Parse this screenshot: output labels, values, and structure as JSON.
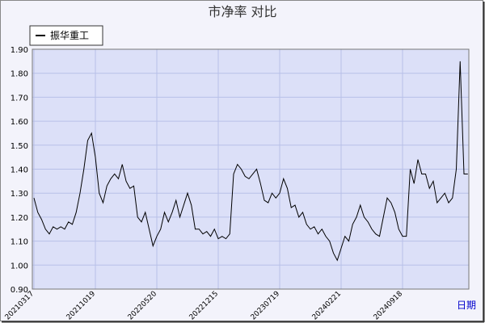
{
  "chart_data": {
    "type": "line",
    "title": "市净率 对比",
    "x_label": "日期",
    "categories": [
      "20210317",
      null,
      null,
      null,
      null,
      null,
      null,
      null,
      null,
      null,
      null,
      null,
      null,
      null,
      null,
      null,
      "20211019",
      null,
      null,
      null,
      null,
      null,
      null,
      null,
      null,
      null,
      null,
      null,
      null,
      null,
      null,
      null,
      "20220520",
      null,
      null,
      null,
      null,
      null,
      null,
      null,
      null,
      null,
      null,
      null,
      null,
      null,
      null,
      null,
      "20221215",
      null,
      null,
      null,
      null,
      null,
      null,
      null,
      null,
      null,
      null,
      null,
      null,
      null,
      null,
      null,
      "20230719",
      null,
      null,
      null,
      null,
      null,
      null,
      null,
      null,
      null,
      null,
      null,
      null,
      null,
      null,
      null,
      "20240221",
      null,
      null,
      null,
      null,
      null,
      null,
      null,
      null,
      null,
      null,
      null,
      null,
      null,
      null,
      null,
      "20240918",
      null,
      null,
      null,
      null,
      null,
      null,
      null,
      null,
      null,
      null,
      null,
      null,
      null,
      null,
      null,
      null,
      null
    ],
    "series": [
      {
        "name": "振华重工",
        "color": "#000000",
        "values": [
          1.28,
          1.22,
          1.19,
          1.15,
          1.13,
          1.16,
          1.15,
          1.16,
          1.15,
          1.18,
          1.17,
          1.22,
          1.3,
          1.4,
          1.52,
          1.55,
          1.45,
          1.3,
          1.26,
          1.33,
          1.36,
          1.38,
          1.36,
          1.42,
          1.35,
          1.32,
          1.33,
          1.2,
          1.18,
          1.22,
          1.15,
          1.08,
          1.12,
          1.15,
          1.22,
          1.18,
          1.22,
          1.27,
          1.2,
          1.25,
          1.3,
          1.25,
          1.15,
          1.15,
          1.13,
          1.14,
          1.12,
          1.15,
          1.11,
          1.12,
          1.11,
          1.13,
          1.38,
          1.42,
          1.4,
          1.37,
          1.36,
          1.38,
          1.4,
          1.34,
          1.27,
          1.26,
          1.3,
          1.28,
          1.3,
          1.36,
          1.32,
          1.24,
          1.25,
          1.2,
          1.22,
          1.17,
          1.15,
          1.16,
          1.13,
          1.15,
          1.12,
          1.1,
          1.05,
          1.02,
          1.07,
          1.12,
          1.1,
          1.17,
          1.2,
          1.25,
          1.2,
          1.18,
          1.15,
          1.13,
          1.12,
          1.2,
          1.28,
          1.26,
          1.22,
          1.15,
          1.12,
          1.12,
          1.4,
          1.34,
          1.44,
          1.38,
          1.38,
          1.32,
          1.35,
          1.26,
          1.28,
          1.3,
          1.26,
          1.28,
          1.4,
          1.85,
          1.38,
          1.38
        ]
      }
    ],
    "ylim": [
      0.9,
      1.9
    ],
    "yticks": [
      {
        "value": 0.9,
        "label": "0.90"
      },
      {
        "value": 1.0,
        "label": "1.00"
      },
      {
        "value": 1.1,
        "label": "1.10"
      },
      {
        "value": 1.2,
        "label": "1.20"
      },
      {
        "value": 1.3,
        "label": "1.30"
      },
      {
        "value": 1.4,
        "label": "1.40"
      },
      {
        "value": 1.5,
        "label": "1.50"
      },
      {
        "value": 1.6,
        "label": "1.60"
      },
      {
        "value": 1.7,
        "label": "1.70"
      },
      {
        "value": 1.8,
        "label": "1.80"
      },
      {
        "value": 1.9,
        "label": "1.90"
      }
    ],
    "grid": true
  }
}
